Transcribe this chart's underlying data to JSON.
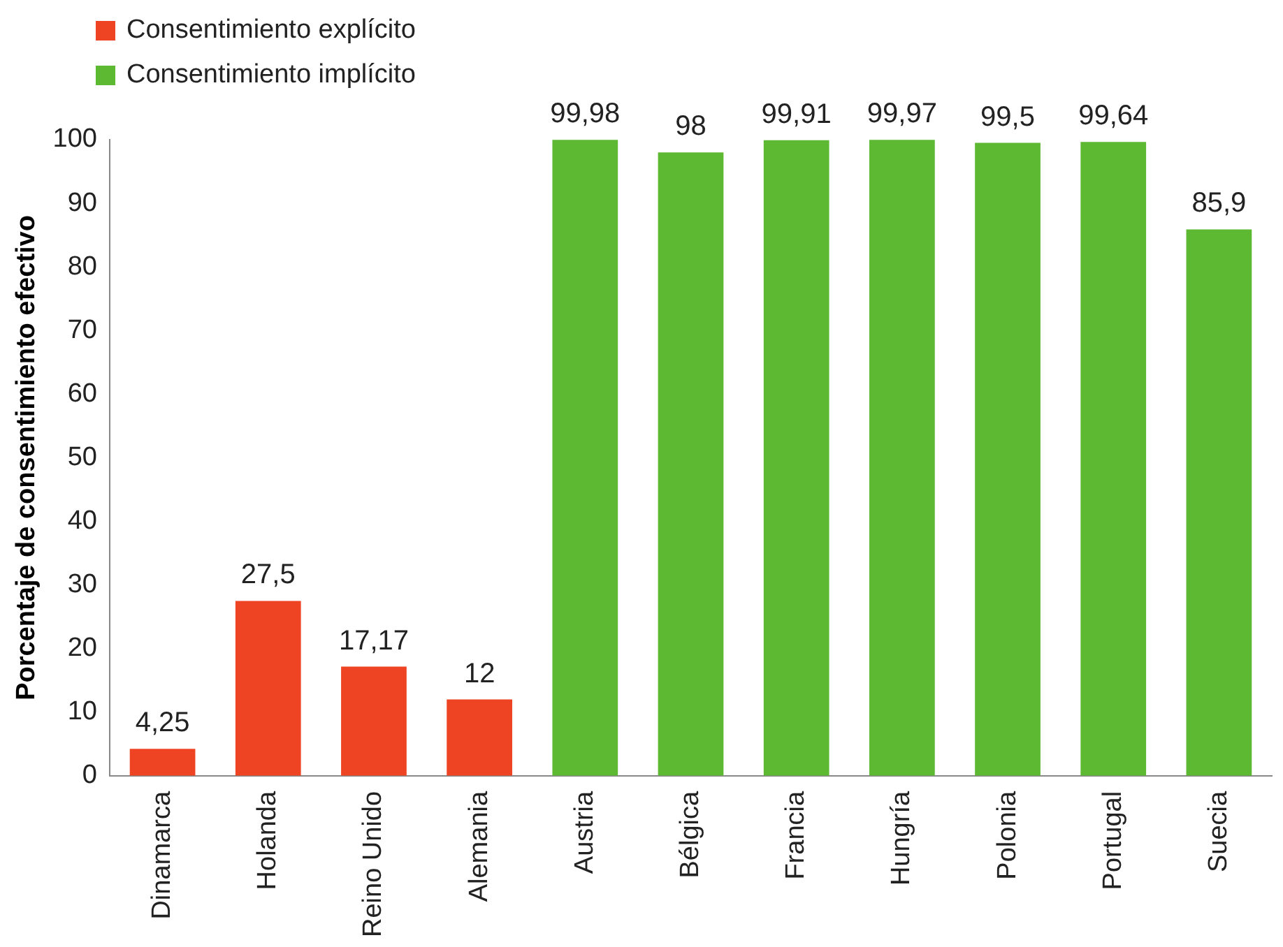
{
  "chart_data": {
    "type": "bar",
    "ylabel": "Porcentaje de consentimiento efectivo",
    "categories": [
      "Dinamarca",
      "Holanda",
      "Reino Unido",
      "Alemania",
      "Austria",
      "Bélgica",
      "Francia",
      "Hungría",
      "Polonia",
      "Portugal",
      "Suecia"
    ],
    "series": [
      {
        "name": "Consentimiento explícito",
        "color": "#ee4423",
        "values": [
          4.25,
          27.5,
          17.17,
          12,
          null,
          null,
          null,
          null,
          null,
          null,
          null
        ],
        "value_labels": [
          "4,25",
          "27,5",
          "17,17",
          "12",
          null,
          null,
          null,
          null,
          null,
          null,
          null
        ]
      },
      {
        "name": "Consentimiento implícito",
        "color": "#5db832",
        "values": [
          null,
          null,
          null,
          null,
          99.98,
          98,
          99.91,
          99.97,
          99.5,
          99.64,
          85.9
        ],
        "value_labels": [
          null,
          null,
          null,
          null,
          "99,98",
          "98",
          "99,91",
          "99,97",
          "99,5",
          "99,64",
          "85,9"
        ]
      }
    ],
    "ylim": [
      0,
      100
    ],
    "yticks": [
      0,
      10,
      20,
      30,
      40,
      50,
      60,
      70,
      80,
      90,
      100
    ],
    "grid": false,
    "legend": "top left"
  }
}
